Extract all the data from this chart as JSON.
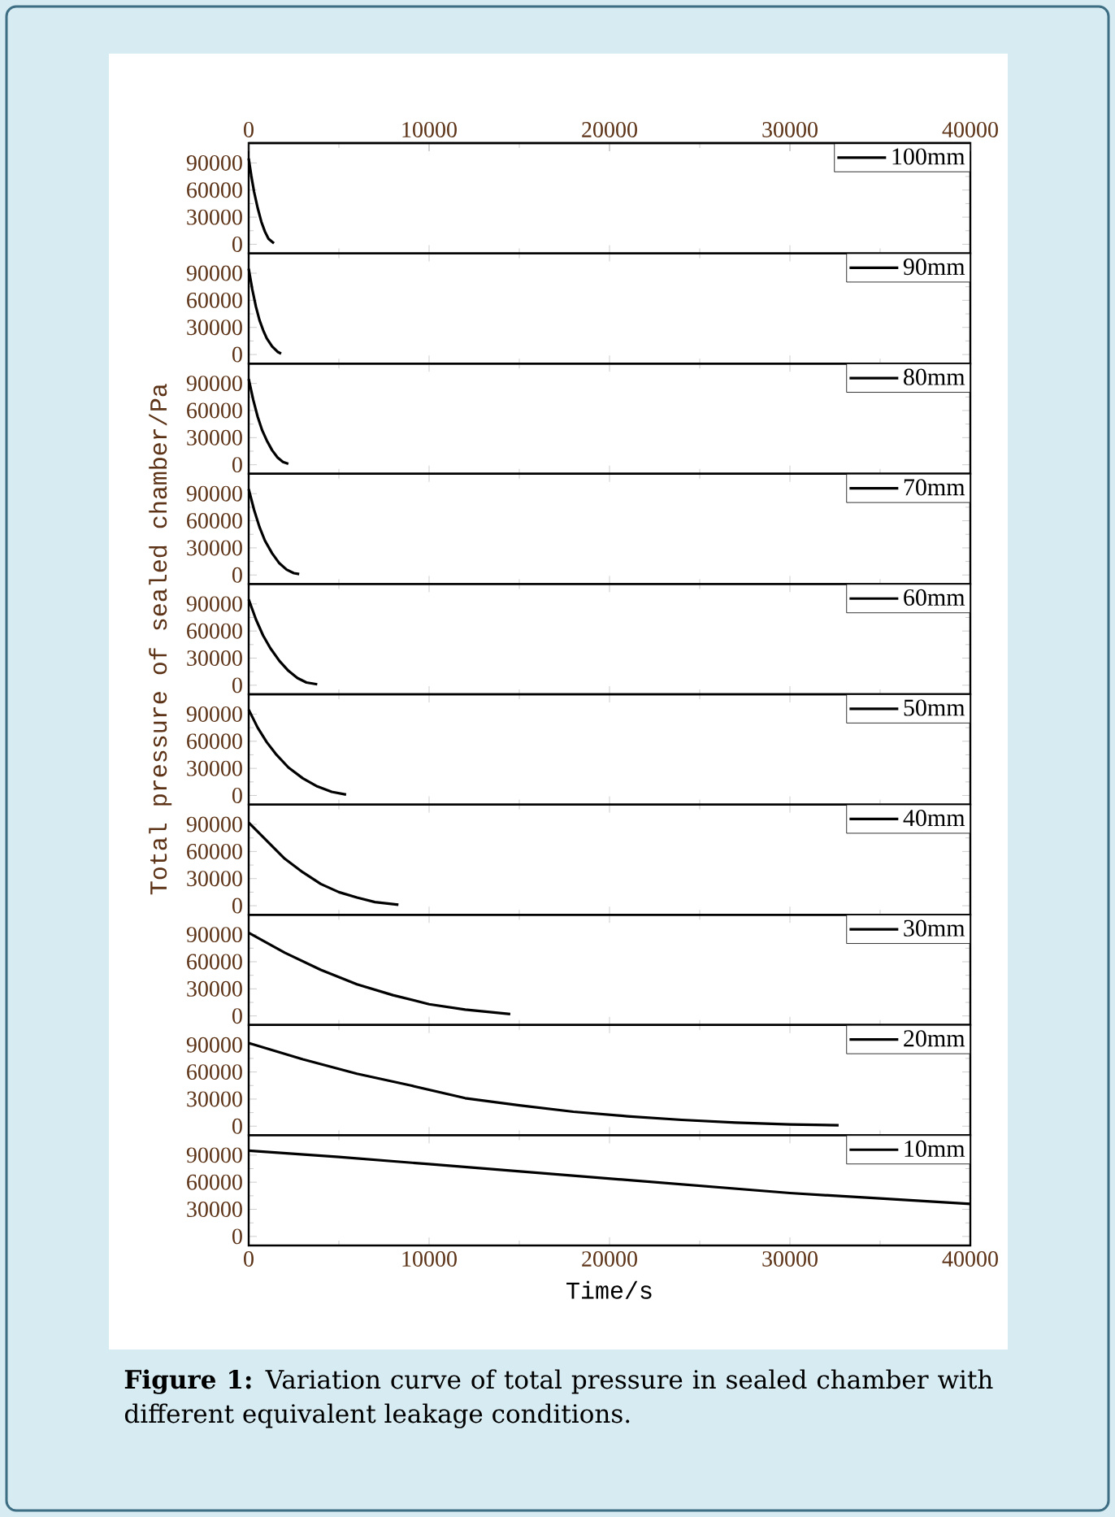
{
  "chart_data": [
    {
      "type": "line",
      "series": [
        {
          "name": "100mm",
          "color": "#000000",
          "x": [
            0,
            150,
            300,
            500,
            700,
            900,
            1100,
            1400
          ],
          "values": [
            95000,
            75000,
            58000,
            40000,
            25000,
            14000,
            6000,
            1000
          ]
        }
      ],
      "xlim": [
        0,
        40000
      ],
      "xticks": [
        0,
        10000,
        20000,
        30000,
        40000
      ],
      "x2lim": [
        0,
        40000
      ],
      "x2ticks": [
        0,
        10000,
        20000,
        30000,
        40000
      ],
      "ylim": [
        -10000,
        112000
      ],
      "yticks": [
        0,
        30000,
        60000,
        90000
      ],
      "legend": "top right",
      "tick_labels": "y"
    },
    {
      "type": "line",
      "series": [
        {
          "name": "90mm",
          "color": "#000000",
          "x": [
            0,
            200,
            400,
            600,
            800,
            1000,
            1300,
            1600,
            1800
          ],
          "values": [
            95000,
            72000,
            53000,
            38000,
            27000,
            18000,
            9000,
            3000,
            1000
          ]
        }
      ],
      "xlim": [
        0,
        40000
      ],
      "xticks": [
        0,
        10000,
        20000,
        30000,
        40000
      ],
      "ylim": [
        -10000,
        112000
      ],
      "yticks": [
        0,
        30000,
        60000,
        90000
      ],
      "legend": "top right",
      "tick_labels": "y"
    },
    {
      "type": "line",
      "series": [
        {
          "name": "80mm",
          "color": "#000000",
          "x": [
            0,
            250,
            500,
            750,
            1000,
            1300,
            1600,
            1900,
            2200
          ],
          "values": [
            95000,
            72000,
            53000,
            38000,
            27000,
            16000,
            8000,
            3000,
            1000
          ]
        }
      ],
      "xlim": [
        0,
        40000
      ],
      "xticks": [
        0,
        10000,
        20000,
        30000,
        40000
      ],
      "ylim": [
        -10000,
        112000
      ],
      "yticks": [
        0,
        30000,
        60000,
        90000
      ],
      "legend": "top right",
      "tick_labels": "y"
    },
    {
      "type": "line",
      "series": [
        {
          "name": "70mm",
          "color": "#000000",
          "x": [
            0,
            300,
            600,
            900,
            1300,
            1700,
            2100,
            2500,
            2800
          ],
          "values": [
            95000,
            72000,
            53000,
            38000,
            24000,
            13000,
            6000,
            2000,
            1000
          ]
        }
      ],
      "xlim": [
        0,
        40000
      ],
      "xticks": [
        0,
        10000,
        20000,
        30000,
        40000
      ],
      "ylim": [
        -10000,
        112000
      ],
      "yticks": [
        0,
        30000,
        60000,
        90000
      ],
      "legend": "top right",
      "tick_labels": "y"
    },
    {
      "type": "line",
      "series": [
        {
          "name": "60mm",
          "color": "#000000",
          "x": [
            0,
            400,
            800,
            1200,
            1700,
            2200,
            2700,
            3200,
            3800
          ],
          "values": [
            95000,
            73000,
            55000,
            41000,
            27000,
            16000,
            8000,
            3000,
            1000
          ]
        }
      ],
      "xlim": [
        0,
        40000
      ],
      "xticks": [
        0,
        10000,
        20000,
        30000,
        40000
      ],
      "ylim": [
        -10000,
        112000
      ],
      "yticks": [
        0,
        30000,
        60000,
        90000
      ],
      "legend": "top right",
      "tick_labels": "y",
      "ylabel": "Total pressure of sealed chamber/Pa"
    },
    {
      "type": "line",
      "series": [
        {
          "name": "50mm",
          "color": "#000000",
          "x": [
            0,
            500,
            1000,
            1500,
            2200,
            3000,
            3800,
            4600,
            5400
          ],
          "values": [
            95000,
            75000,
            59000,
            46000,
            31000,
            19000,
            10000,
            4000,
            1000
          ]
        }
      ],
      "xlim": [
        0,
        40000
      ],
      "xticks": [
        0,
        10000,
        20000,
        30000,
        40000
      ],
      "ylim": [
        -10000,
        112000
      ],
      "yticks": [
        0,
        30000,
        60000,
        90000
      ],
      "legend": "top right",
      "tick_labels": "y"
    },
    {
      "type": "line",
      "series": [
        {
          "name": "40mm",
          "color": "#000000",
          "x": [
            0,
            1000,
            2000,
            3000,
            4000,
            5000,
            6000,
            7000,
            8300
          ],
          "values": [
            92000,
            72000,
            52000,
            37000,
            24000,
            15000,
            9000,
            4000,
            1000
          ]
        }
      ],
      "xlim": [
        0,
        40000
      ],
      "xticks": [
        0,
        10000,
        20000,
        30000,
        40000
      ],
      "ylim": [
        -10000,
        112000
      ],
      "yticks": [
        0,
        30000,
        60000,
        90000
      ],
      "legend": "top right",
      "tick_labels": "y"
    },
    {
      "type": "line",
      "series": [
        {
          "name": "30mm",
          "color": "#000000",
          "x": [
            0,
            2000,
            4000,
            6000,
            8000,
            10000,
            12000,
            14500
          ],
          "values": [
            92000,
            70000,
            51000,
            35000,
            23000,
            13000,
            7000,
            2000
          ]
        }
      ],
      "xlim": [
        0,
        40000
      ],
      "xticks": [
        0,
        10000,
        20000,
        30000,
        40000
      ],
      "ylim": [
        -10000,
        112000
      ],
      "yticks": [
        0,
        30000,
        60000,
        90000
      ],
      "legend": "top right",
      "tick_labels": "y"
    },
    {
      "type": "line",
      "series": [
        {
          "name": "20mm",
          "color": "#000000",
          "x": [
            0,
            3000,
            6000,
            9000,
            12000,
            15000,
            18000,
            21000,
            24000,
            27000,
            30000,
            32700
          ],
          "values": [
            92000,
            74000,
            58000,
            45000,
            31000,
            23000,
            16000,
            11000,
            7000,
            4000,
            2000,
            1000
          ]
        }
      ],
      "xlim": [
        0,
        40000
      ],
      "xticks": [
        0,
        10000,
        20000,
        30000,
        40000
      ],
      "ylim": [
        -10000,
        112000
      ],
      "yticks": [
        0,
        30000,
        60000,
        90000
      ],
      "legend": "top right",
      "tick_labels": "y"
    },
    {
      "type": "line",
      "series": [
        {
          "name": "10mm",
          "color": "#000000",
          "x": [
            0,
            5000,
            10000,
            15000,
            20000,
            25000,
            30000,
            35000,
            40000
          ],
          "values": [
            95000,
            88000,
            80000,
            72000,
            64000,
            56000,
            48000,
            42000,
            36000
          ]
        }
      ],
      "xlim": [
        0,
        40000
      ],
      "xticks": [
        0,
        10000,
        20000,
        30000,
        40000
      ],
      "ylim": [
        -10000,
        112000
      ],
      "yticks": [
        0,
        30000,
        60000,
        90000
      ],
      "legend": "top right",
      "xlabel": "Time/s",
      "annotations": [
        "**Figure 1:** Variation curve of total pressure in sealed chamber with different equivalent leakage conditions."
      ]
    }
  ]
}
